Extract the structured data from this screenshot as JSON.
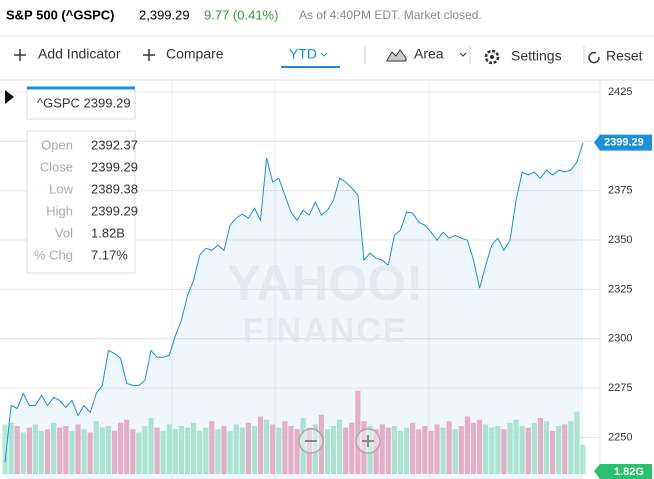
{
  "header": {
    "name": "S&P 500 (^GSPC)",
    "price": "2,399.29",
    "change": "9.77 (0.41%)",
    "note": "As of 4:40PM EDT. Market closed."
  },
  "toolbar": {
    "add_indicator": "Add Indicator",
    "compare": "Compare",
    "range": "YTD",
    "chart_type": "Area",
    "settings": "Settings",
    "reset": "Reset"
  },
  "tooltip": {
    "title": "^GSPC 2399.29",
    "rows": [
      [
        "Open",
        "2392.37"
      ],
      [
        "Close",
        "2399.29"
      ],
      [
        "Low",
        "2389.38"
      ],
      [
        "High",
        "2399.29"
      ],
      [
        "Vol",
        "1.82B"
      ],
      [
        "% Chg",
        "7.17%"
      ]
    ]
  },
  "watermark": [
    "YAHOO!",
    "FINANCE"
  ],
  "chart_data": {
    "type": "area",
    "color": "#1a8fe0",
    "values": [
      2237.3,
      2266.2,
      2264.7,
      2272.3,
      2266.2,
      2266.2,
      2271.3,
      2266.2,
      2270.3,
      2268.8,
      2265.2,
      2268.8,
      2261.2,
      2266.2,
      2262.7,
      2272.3,
      2276.4,
      2294.1,
      2292.6,
      2290.1,
      2277.4,
      2276.4,
      2276.4,
      2278.9,
      2294.1,
      2290.6,
      2290.6,
      2291.6,
      2301.7,
      2309.3,
      2322.0,
      2329.6,
      2342.3,
      2345.8,
      2344.8,
      2347.4,
      2344.8,
      2357.5,
      2361.1,
      2363.1,
      2361.1,
      2366.1,
      2360.0,
      2391.5,
      2379.3,
      2381.3,
      2372.7,
      2364.1,
      2360.0,
      2365.1,
      2362.6,
      2369.2,
      2362.6,
      2365.1,
      2370.2,
      2381.3,
      2379.3,
      2376.3,
      2372.7,
      2339.8,
      2343.3,
      2340.8,
      2339.8,
      2337.2,
      2352.4,
      2355.0,
      2364.1,
      2363.6,
      2359.0,
      2357.5,
      2354.0,
      2349.9,
      2354.0,
      2350.9,
      2352.4,
      2350.9,
      2349.9,
      2339.8,
      2325.6,
      2337.2,
      2347.4,
      2350.9,
      2344.8,
      2349.9,
      2370.2,
      2384.4,
      2382.9,
      2384.4,
      2381.3,
      2385.4,
      2382.9,
      2385.4,
      2384.4,
      2385.4,
      2389.5,
      2399.29
    ],
    "volume": [
      3.1,
      3.2,
      3.0,
      2.6,
      2.9,
      3.1,
      2.7,
      2.8,
      3.2,
      2.9,
      3.0,
      2.7,
      3.1,
      2.8,
      2.6,
      3.3,
      2.9,
      3.0,
      2.7,
      3.2,
      3.4,
      2.8,
      2.6,
      3.0,
      3.5,
      2.9,
      2.7,
      3.1,
      2.8,
      3.0,
      2.9,
      3.2,
      2.7,
      2.9,
      3.3,
      2.8,
      3.0,
      2.7,
      3.1,
      2.9,
      3.2,
      3.0,
      3.6,
      3.4,
      3.1,
      2.9,
      3.3,
      3.0,
      2.8,
      3.5,
      2.9,
      3.1,
      3.7,
      2.8,
      3.0,
      3.4,
      2.9,
      3.2,
      5.2,
      3.3,
      3.0,
      2.8,
      3.1,
      2.9,
      3.0,
      2.7,
      2.9,
      3.2,
      2.8,
      3.0,
      2.7,
      3.1,
      2.9,
      3.3,
      2.8,
      3.0,
      3.6,
      3.2,
      3.4,
      3.1,
      2.9,
      3.0,
      2.8,
      3.2,
      3.4,
      3.0,
      2.9,
      3.2,
      3.5,
      3.3,
      2.7,
      3.0,
      3.1,
      3.3,
      3.9,
      1.82
    ],
    "volume_label": "1.82G",
    "ylim": [
      2229,
      2431
    ],
    "yticks": [
      2250,
      2275,
      2300,
      2325,
      2350,
      2375,
      2400,
      2425
    ],
    "grid": true
  }
}
